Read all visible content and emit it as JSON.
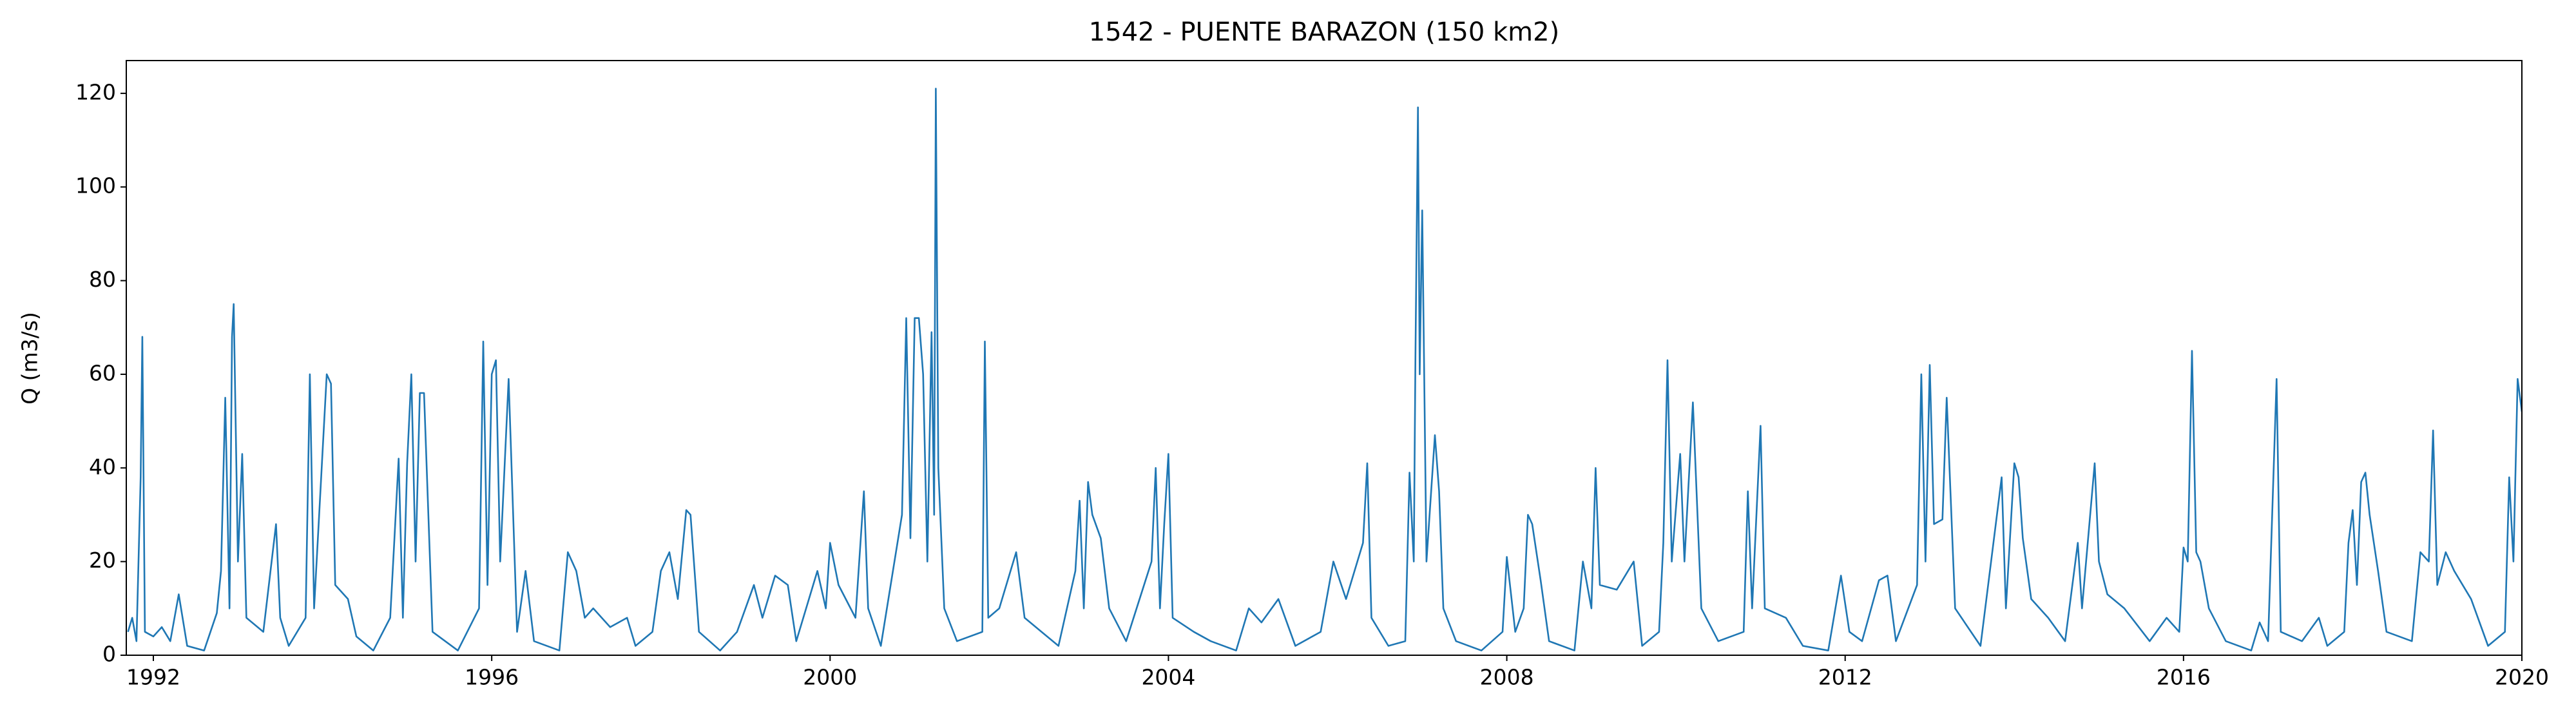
{
  "chart_data": {
    "type": "line",
    "title": "1542 - PUENTE BARAZON (150 km2)",
    "y_label": "Q (m3/s)",
    "xlim": [
      1991.68,
      2020
    ],
    "xticks": [
      1992,
      1996,
      2000,
      2004,
      2008,
      2012,
      2016,
      2020
    ],
    "ylim": [
      0,
      127
    ],
    "yticks": [
      0,
      20,
      40,
      60,
      80,
      100,
      120
    ],
    "grid": false,
    "series": [
      {
        "color": "#1f77b4",
        "x": [
          1991.7,
          1991.75,
          1991.8,
          1991.85,
          1991.87,
          1991.9,
          1992.0,
          1992.1,
          1992.2,
          1992.3,
          1992.4,
          1992.6,
          1992.75,
          1992.8,
          1992.85,
          1992.9,
          1992.93,
          1992.95,
          1993.0,
          1993.05,
          1993.1,
          1993.3,
          1993.45,
          1993.5,
          1993.6,
          1993.8,
          1993.85,
          1993.9,
          1994.05,
          1994.1,
          1994.15,
          1994.3,
          1994.4,
          1994.6,
          1994.8,
          1994.85,
          1994.9,
          1994.95,
          1995.0,
          1995.05,
          1995.1,
          1995.15,
          1995.2,
          1995.3,
          1995.6,
          1995.85,
          1995.9,
          1995.95,
          1996.0,
          1996.05,
          1996.1,
          1996.2,
          1996.3,
          1996.4,
          1996.5,
          1996.8,
          1996.9,
          1997.0,
          1997.1,
          1997.2,
          1997.4,
          1997.6,
          1997.7,
          1997.9,
          1998.0,
          1998.1,
          1998.2,
          1998.3,
          1998.35,
          1998.45,
          1998.7,
          1998.9,
          1999.1,
          1999.2,
          1999.35,
          1999.5,
          1999.6,
          1999.85,
          1999.95,
          2000.0,
          2000.1,
          2000.3,
          2000.4,
          2000.45,
          2000.6,
          2000.85,
          2000.9,
          2000.95,
          2001.0,
          2001.05,
          2001.1,
          2001.15,
          2001.2,
          2001.23,
          2001.25,
          2001.28,
          2001.35,
          2001.5,
          2001.8,
          2001.83,
          2001.87,
          2002.0,
          2002.2,
          2002.3,
          2002.5,
          2002.7,
          2002.9,
          2002.95,
          2003.0,
          2003.05,
          2003.1,
          2003.2,
          2003.3,
          2003.5,
          2003.8,
          2003.85,
          2003.9,
          2003.95,
          2004.0,
          2004.05,
          2004.3,
          2004.5,
          2004.8,
          2004.95,
          2005.1,
          2005.3,
          2005.5,
          2005.8,
          2005.95,
          2006.1,
          2006.3,
          2006.35,
          2006.4,
          2006.6,
          2006.8,
          2006.85,
          2006.9,
          2006.92,
          2006.95,
          2006.97,
          2007.0,
          2007.05,
          2007.15,
          2007.2,
          2007.25,
          2007.4,
          2007.7,
          2007.95,
          2008.0,
          2008.1,
          2008.2,
          2008.25,
          2008.3,
          2008.4,
          2008.5,
          2008.8,
          2008.9,
          2009.0,
          2009.05,
          2009.1,
          2009.3,
          2009.5,
          2009.6,
          2009.8,
          2009.85,
          2009.9,
          2009.95,
          2010.05,
          2010.1,
          2010.2,
          2010.3,
          2010.5,
          2010.8,
          2010.85,
          2010.9,
          2011.0,
          2011.05,
          2011.3,
          2011.5,
          2011.8,
          2011.95,
          2012.05,
          2012.2,
          2012.4,
          2012.5,
          2012.6,
          2012.85,
          2012.9,
          2012.95,
          2013.0,
          2013.05,
          2013.15,
          2013.2,
          2013.3,
          2013.6,
          2013.85,
          2013.9,
          2014.0,
          2014.05,
          2014.1,
          2014.2,
          2014.4,
          2014.6,
          2014.75,
          2014.8,
          2014.95,
          2015.0,
          2015.1,
          2015.3,
          2015.6,
          2015.8,
          2015.95,
          2016.0,
          2016.05,
          2016.1,
          2016.15,
          2016.2,
          2016.3,
          2016.5,
          2016.8,
          2016.9,
          2017.0,
          2017.1,
          2017.15,
          2017.4,
          2017.6,
          2017.7,
          2017.9,
          2017.95,
          2018.0,
          2018.05,
          2018.1,
          2018.15,
          2018.2,
          2018.3,
          2018.4,
          2018.7,
          2018.8,
          2018.9,
          2018.95,
          2019.0,
          2019.1,
          2019.2,
          2019.4,
          2019.6,
          2019.8,
          2019.85,
          2019.9,
          2019.95,
          2020.0
        ],
        "values": [
          5,
          8,
          3,
          38,
          68,
          5,
          4,
          6,
          3,
          13,
          2,
          1,
          9,
          18,
          55,
          10,
          68,
          75,
          20,
          43,
          8,
          5,
          28,
          8,
          2,
          8,
          60,
          10,
          60,
          58,
          15,
          12,
          4,
          1,
          8,
          25,
          42,
          8,
          41,
          60,
          20,
          56,
          56,
          5,
          1,
          10,
          67,
          15,
          60,
          63,
          20,
          59,
          5,
          18,
          3,
          1,
          22,
          18,
          8,
          10,
          6,
          8,
          2,
          5,
          18,
          22,
          12,
          31,
          30,
          5,
          1,
          5,
          15,
          8,
          17,
          15,
          3,
          18,
          10,
          24,
          15,
          8,
          35,
          10,
          2,
          30,
          72,
          25,
          72,
          72,
          60,
          20,
          69,
          30,
          121,
          40,
          10,
          3,
          5,
          67,
          8,
          10,
          22,
          8,
          5,
          2,
          18,
          33,
          10,
          37,
          30,
          25,
          10,
          3,
          20,
          40,
          10,
          28,
          43,
          8,
          5,
          3,
          1,
          10,
          7,
          12,
          2,
          5,
          20,
          12,
          24,
          41,
          8,
          2,
          3,
          39,
          20,
          64,
          117,
          60,
          95,
          20,
          47,
          35,
          10,
          3,
          1,
          5,
          21,
          5,
          10,
          30,
          28,
          16,
          3,
          1,
          20,
          10,
          40,
          15,
          14,
          20,
          2,
          5,
          24,
          63,
          20,
          43,
          20,
          54,
          10,
          3,
          5,
          35,
          10,
          49,
          10,
          8,
          2,
          1,
          17,
          5,
          3,
          16,
          17,
          3,
          15,
          60,
          20,
          62,
          28,
          29,
          55,
          10,
          2,
          38,
          10,
          41,
          38,
          25,
          12,
          8,
          3,
          24,
          10,
          41,
          20,
          13,
          10,
          3,
          8,
          5,
          23,
          20,
          65,
          22,
          20,
          10,
          3,
          1,
          7,
          3,
          59,
          5,
          3,
          8,
          2,
          5,
          24,
          31,
          15,
          37,
          39,
          30,
          18,
          5,
          3,
          22,
          20,
          48,
          15,
          22,
          18,
          12,
          2,
          5,
          38,
          20,
          59,
          52
        ]
      }
    ]
  }
}
